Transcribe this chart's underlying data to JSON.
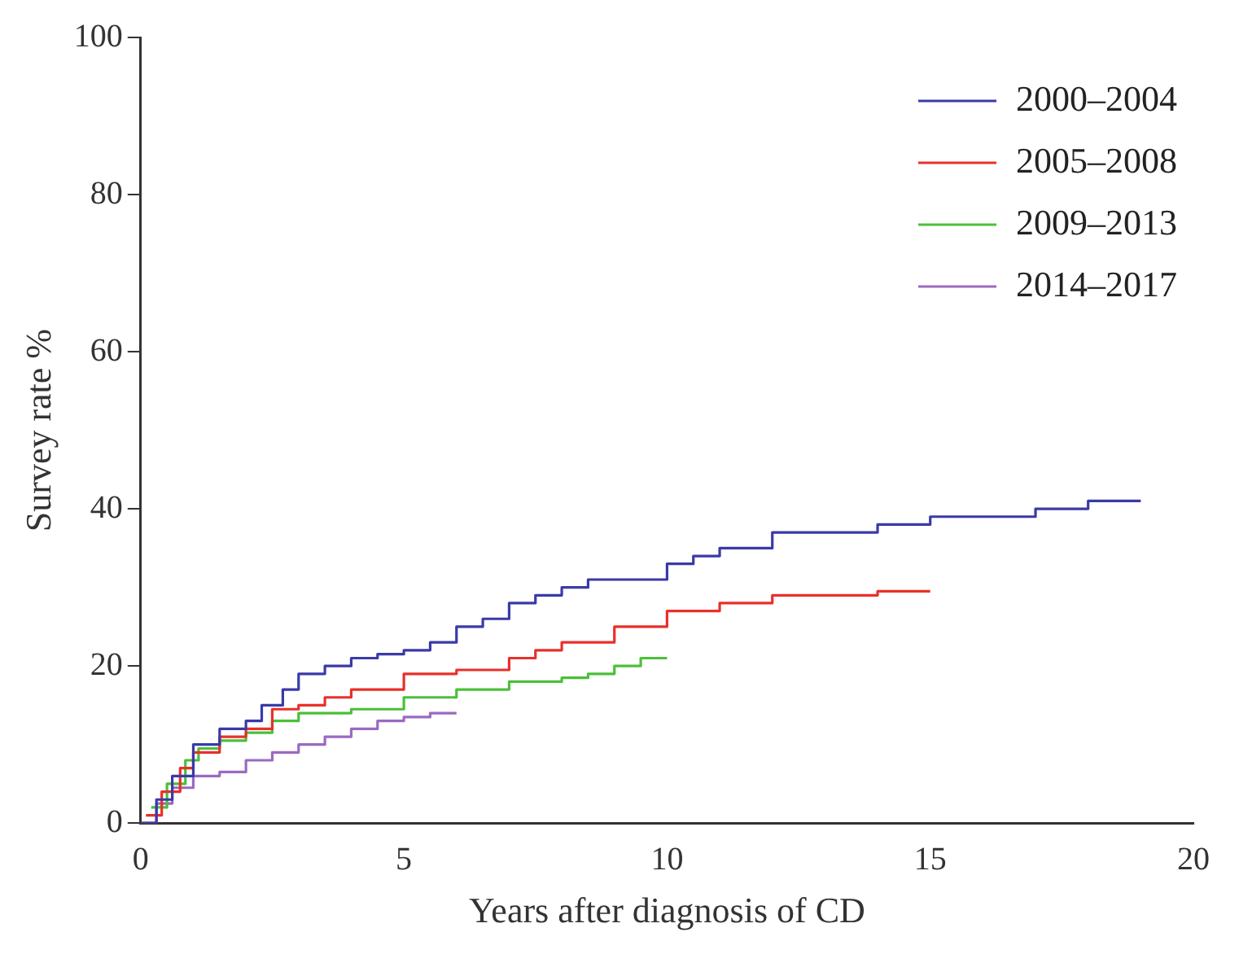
{
  "chart_data": {
    "type": "step",
    "xlabel": "Years after diagnosis of CD",
    "ylabel": "Survey rate %",
    "xlim": [
      0,
      20
    ],
    "xticks": [
      0,
      5,
      10,
      15,
      20
    ],
    "ylim": [
      0,
      100
    ],
    "yticks": [
      0,
      20,
      40,
      60,
      80,
      100
    ],
    "grid": false,
    "legend": "top right",
    "series": [
      {
        "name": "2000–2004",
        "color": "#3a3aa8",
        "x": [
          0,
          0.3,
          0.6,
          1,
          1.5,
          2,
          2.3,
          2.7,
          3,
          3.5,
          4,
          4.5,
          5,
          5.5,
          6,
          6.5,
          7,
          7.5,
          8,
          8.5,
          9,
          10,
          10.5,
          11,
          12,
          13,
          14,
          15,
          16,
          17,
          18,
          19
        ],
        "values": [
          0,
          3,
          6,
          10,
          12,
          13,
          15,
          17,
          19,
          20,
          21,
          21.5,
          22,
          23,
          25,
          26,
          28,
          29,
          30,
          31,
          31,
          33,
          34,
          35,
          37,
          37,
          38,
          39,
          39,
          40,
          41,
          41
        ]
      },
      {
        "name": "2005–2008",
        "color": "#e8302a",
        "x": [
          0.1,
          0.4,
          0.75,
          1,
          1.5,
          2,
          2.5,
          3,
          3.5,
          4,
          5,
          6,
          7,
          7.5,
          8,
          9,
          10,
          11,
          12,
          13,
          14,
          15
        ],
        "values": [
          1,
          4,
          7,
          9,
          11,
          12,
          14.5,
          15,
          16,
          17,
          19,
          19.5,
          21,
          22,
          23,
          25,
          27,
          28,
          29,
          29,
          29.5,
          29.5
        ]
      },
      {
        "name": "2009–2013",
        "color": "#4cbf3a",
        "x": [
          0.2,
          0.5,
          0.85,
          1.1,
          1.5,
          2,
          2.5,
          3,
          4,
          5,
          6,
          7,
          8,
          8.5,
          9,
          9.5,
          10
        ],
        "values": [
          2,
          5,
          8,
          9.5,
          10.5,
          11.5,
          13,
          14,
          14.5,
          16,
          17,
          18,
          18.5,
          19,
          20,
          21,
          21
        ]
      },
      {
        "name": "2014–2017",
        "color": "#9a6ac0",
        "x": [
          0,
          0.3,
          0.6,
          1,
          1.5,
          2,
          2.5,
          3,
          3.5,
          4,
          4.5,
          5,
          5.5,
          6
        ],
        "values": [
          0,
          2.5,
          4.5,
          6,
          6.5,
          8,
          9,
          10,
          11,
          12,
          13,
          13.5,
          14,
          14
        ]
      }
    ]
  }
}
